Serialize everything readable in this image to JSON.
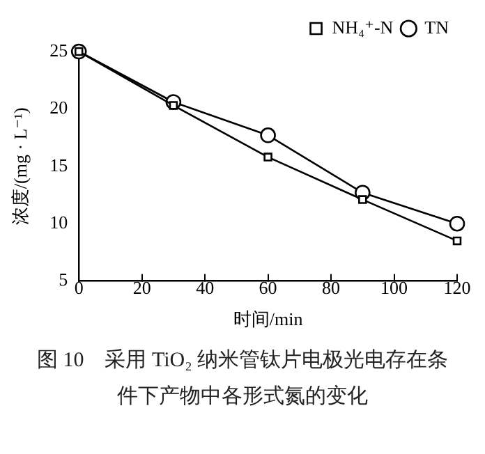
{
  "chart_data": {
    "type": "line",
    "xlabel": "时间/min",
    "ylabel": "浓度/(mg · L⁻¹)",
    "x": [
      0,
      30,
      60,
      90,
      120
    ],
    "series": [
      {
        "name": "NH₄⁺-N",
        "color": "#000000",
        "marker": "square",
        "values": [
          25,
          20.3,
          15.8,
          12.1,
          8.5
        ]
      },
      {
        "name": "TN",
        "color": "#000000",
        "marker": "circle",
        "values": [
          25,
          20.6,
          17.7,
          12.7,
          10.0
        ]
      }
    ],
    "xlim": [
      0,
      120
    ],
    "xticks": [
      0,
      20,
      40,
      60,
      80,
      100,
      120
    ],
    "ylim": [
      5,
      25
    ],
    "yticks": [
      5,
      10,
      15,
      20,
      25
    ],
    "grid": false,
    "legend": "top right",
    "line_style": "solid",
    "annotations": [
      "图 10　采用 TiO₂ 纳米管钛片电极光电存在条件下产物中各形式氮的变化"
    ]
  }
}
